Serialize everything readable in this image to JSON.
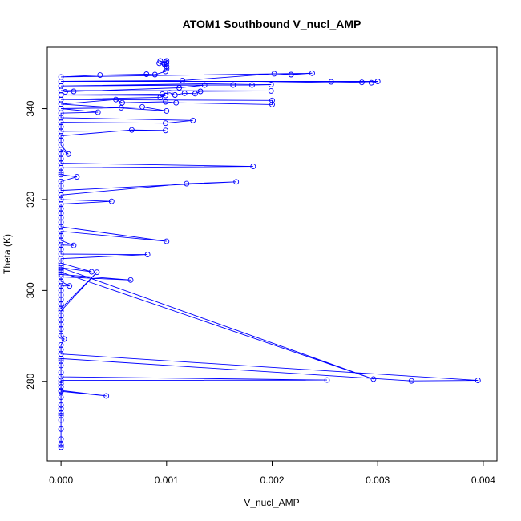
{
  "chart_data": {
    "type": "line",
    "title": "ATOM1 Southbound V_nucl_AMP",
    "xlabel": "V_nucl_AMP",
    "ylabel": "Theta (K)",
    "xlim": [
      -0.00013,
      0.00413
    ],
    "ylim": [
      262.5,
      353.5
    ],
    "x_ticks": [
      0,
      0.001,
      0.002,
      0.003,
      0.004
    ],
    "x_tick_labels": [
      "0.000",
      "0.001",
      "0.002",
      "0.003",
      "0.004"
    ],
    "y_ticks": [
      280,
      300,
      320,
      340
    ],
    "y_tick_labels": [
      "280",
      "300",
      "320",
      "340"
    ],
    "grid": false,
    "legend": "none",
    "series": [
      {
        "color": "#0000ff",
        "marker": "open-circle",
        "points": [
          [
            0.0,
            265.5
          ],
          [
            0.0,
            266.0
          ],
          [
            0.0,
            267.3
          ],
          [
            0.0,
            269.5
          ],
          [
            0.0,
            271.5
          ],
          [
            0.0,
            272.5
          ],
          [
            0.0,
            273.0
          ],
          [
            0.0,
            274.0
          ],
          [
            0.0,
            274.8
          ],
          [
            0.0,
            276.5
          ],
          [
            0.0,
            278.0
          ],
          [
            0.00043,
            276.8
          ],
          [
            0.0,
            277.8
          ],
          [
            0.0,
            278.8
          ],
          [
            0.0,
            279.5
          ],
          [
            0.0,
            280.2
          ],
          [
            0.00252,
            280.3
          ],
          [
            0.0,
            281.0
          ],
          [
            0.0,
            282.0
          ],
          [
            0.0,
            283.5
          ],
          [
            0.0,
            284.5
          ],
          [
            0.0,
            285.0
          ],
          [
            0.00332,
            280.1
          ],
          [
            0.00395,
            280.2
          ],
          [
            0.0,
            286.0
          ],
          [
            0.0,
            287.0
          ],
          [
            0.0,
            288.0
          ],
          [
            3e-05,
            289.3
          ],
          [
            0.0,
            290.0
          ],
          [
            0.0,
            291.5
          ],
          [
            0.0,
            292.5
          ],
          [
            0.0,
            293.5
          ],
          [
            0.0,
            294.5
          ],
          [
            0.0,
            295.5
          ],
          [
            0.00034,
            304.0
          ],
          [
            0.0,
            296.0
          ],
          [
            0.0,
            297.0
          ],
          [
            0.0,
            298.0
          ],
          [
            0.0,
            299.0
          ],
          [
            0.0,
            300.0
          ],
          [
            0.0,
            301.0
          ],
          [
            8e-05,
            301.0
          ],
          [
            0.0,
            302.0
          ],
          [
            0.0,
            303.0
          ],
          [
            0.00066,
            302.3
          ],
          [
            0.0,
            303.5
          ],
          [
            0.0,
            304.5
          ],
          [
            0.0,
            305.5
          ],
          [
            0.0,
            304.0
          ],
          [
            0.00296,
            280.5
          ],
          [
            0.0,
            305.0
          ],
          [
            0.00029,
            304.1
          ],
          [
            0.0,
            306.0
          ],
          [
            0.0,
            307.0
          ],
          [
            0.00082,
            307.9
          ],
          [
            0.0,
            308.0
          ],
          [
            0.0,
            309.0
          ],
          [
            0.0,
            310.0
          ],
          [
            0.00012,
            309.9
          ],
          [
            0.0,
            311.0
          ],
          [
            0.0,
            312.0
          ],
          [
            0.0,
            313.0
          ],
          [
            0.001,
            310.8
          ],
          [
            0.0,
            314.0
          ],
          [
            0.0,
            315.0
          ],
          [
            0.0,
            316.0
          ],
          [
            0.0,
            317.0
          ],
          [
            0.0,
            318.0
          ],
          [
            0.0,
            319.0
          ],
          [
            0.00048,
            319.6
          ],
          [
            0.0,
            320.0
          ],
          [
            0.0,
            321.0
          ],
          [
            0.00119,
            323.5
          ],
          [
            0.00166,
            323.9
          ],
          [
            0.0,
            322.0
          ],
          [
            0.0,
            323.0
          ],
          [
            0.0,
            324.0
          ],
          [
            0.00015,
            325.0
          ],
          [
            0.0,
            325.5
          ],
          [
            0.0,
            326.0
          ],
          [
            0.0,
            327.0
          ],
          [
            0.00182,
            327.3
          ],
          [
            0.0,
            328.0
          ],
          [
            0.0,
            329.0
          ],
          [
            0.0,
            330.0
          ],
          [
            0.0,
            331.0
          ],
          [
            7e-05,
            330.0
          ],
          [
            0.0,
            332.0
          ],
          [
            0.0,
            333.0
          ],
          [
            0.0,
            334.0
          ],
          [
            0.00067,
            335.3
          ],
          [
            0.00099,
            335.2
          ],
          [
            0.0,
            335.0
          ],
          [
            0.0,
            336.0
          ],
          [
            0.0,
            337.0
          ],
          [
            0.00099,
            336.8
          ],
          [
            0.00125,
            337.4
          ],
          [
            0.0,
            338.0
          ],
          [
            0.0,
            339.0
          ],
          [
            0.00035,
            339.2
          ],
          [
            0.0,
            340.0
          ],
          [
            0.00057,
            340.2
          ],
          [
            0.00077,
            340.4
          ],
          [
            0.001,
            339.5
          ],
          [
            0.0,
            341.0
          ],
          [
            0.00052,
            342.0
          ],
          [
            0.00058,
            341.3
          ],
          [
            0.00099,
            341.5
          ],
          [
            0.00109,
            341.3
          ],
          [
            0.002,
            340.9
          ],
          [
            0.002,
            341.8
          ],
          [
            0.0,
            342.0
          ],
          [
            0.00094,
            342.5
          ],
          [
            0.00099,
            342.9
          ],
          [
            0.0,
            343.0
          ],
          [
            0.00096,
            343.2
          ],
          [
            0.00103,
            343.5
          ],
          [
            0.00108,
            343.0
          ],
          [
            0.00117,
            343.4
          ],
          [
            0.00127,
            343.3
          ],
          [
            0.00132,
            343.8
          ],
          [
            0.00199,
            343.9
          ],
          [
            0.0,
            344.0
          ],
          [
            4e-05,
            343.7
          ],
          [
            0.00012,
            343.8
          ],
          [
            0.00112,
            344.6
          ],
          [
            0.00136,
            345.2
          ],
          [
            0.00163,
            345.2
          ],
          [
            0.00181,
            345.2
          ],
          [
            0.00199,
            345.3
          ],
          [
            0.0,
            345.0
          ],
          [
            0.00256,
            345.9
          ],
          [
            0.00285,
            345.8
          ],
          [
            0.00294,
            345.7
          ],
          [
            0.003,
            346.0
          ],
          [
            0.0,
            346.0
          ],
          [
            0.00115,
            346.2
          ],
          [
            0.00202,
            347.7
          ],
          [
            0.00218,
            347.5
          ],
          [
            0.00238,
            347.8
          ],
          [
            0.0,
            347.0
          ],
          [
            0.00037,
            347.4
          ],
          [
            0.00081,
            347.6
          ],
          [
            0.00089,
            347.5
          ],
          [
            0.00099,
            348.2
          ],
          [
            0.001,
            348.8
          ],
          [
            0.001,
            349.3
          ],
          [
            0.00093,
            350.0
          ],
          [
            0.00099,
            350.2
          ],
          [
            0.00098,
            349.8
          ],
          [
            0.001,
            350.5
          ],
          [
            0.001,
            350.0
          ],
          [
            0.00094,
            350.5
          ]
        ]
      }
    ]
  }
}
